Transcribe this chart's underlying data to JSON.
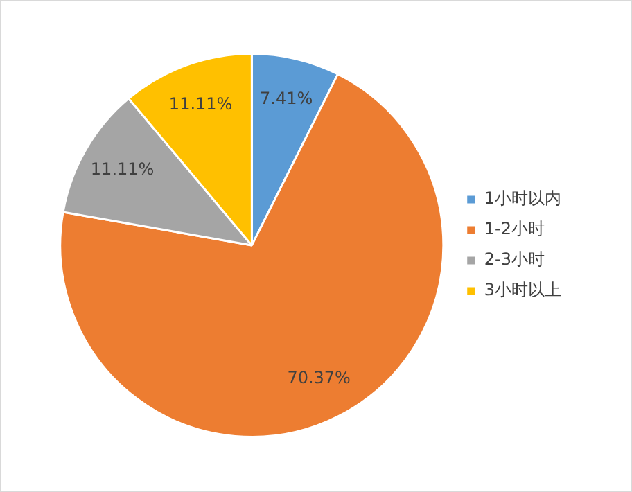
{
  "chart_data": {
    "type": "pie",
    "categories": [
      "1小时以内",
      "1-2小时",
      "2-3小时",
      "3小时以上"
    ],
    "values": [
      7.41,
      70.37,
      11.11,
      11.11
    ],
    "colors": [
      "#5b9bd5",
      "#ed7d31",
      "#a5a5a5",
      "#ffc000"
    ],
    "value_labels": [
      "7.41%",
      "70.37%",
      "11.11%",
      "11.11%"
    ],
    "legend": "right"
  }
}
